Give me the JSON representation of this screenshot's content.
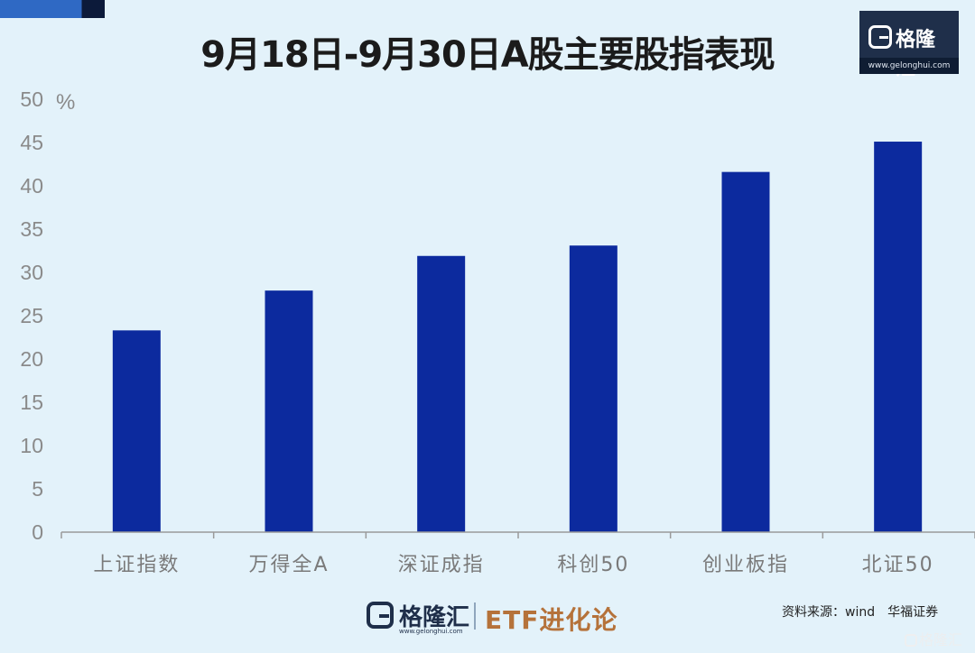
{
  "title": "9月18日-9月30日A股主要股指表现",
  "logo": {
    "name": "格隆汇",
    "url": "www.gelonghui.com"
  },
  "footer": {
    "logo_name": "格隆汇",
    "logo_url": "www.gelonghui.com",
    "series_name": "ETF进化论",
    "source": "资料来源：wind　华福证券"
  },
  "watermark": "格隆汇",
  "colors": {
    "bar": "#0c2a9e",
    "background": "#e3f2fa",
    "text": "#8a8a8a",
    "axis": "#9a9a9a"
  },
  "chart_data": {
    "type": "bar",
    "title": "9月18日-9月30日A股主要股指表现",
    "ylabel": "%",
    "ylim": [
      0,
      50
    ],
    "yticks": [
      0,
      5,
      10,
      15,
      20,
      25,
      30,
      35,
      40,
      45,
      50
    ],
    "grid": false,
    "categories": [
      "上证指数",
      "万得全A",
      "深证成指",
      "科创50",
      "创业板指",
      "北证50"
    ],
    "values": [
      23.3,
      27.9,
      31.9,
      33.1,
      41.6,
      45.1
    ]
  }
}
